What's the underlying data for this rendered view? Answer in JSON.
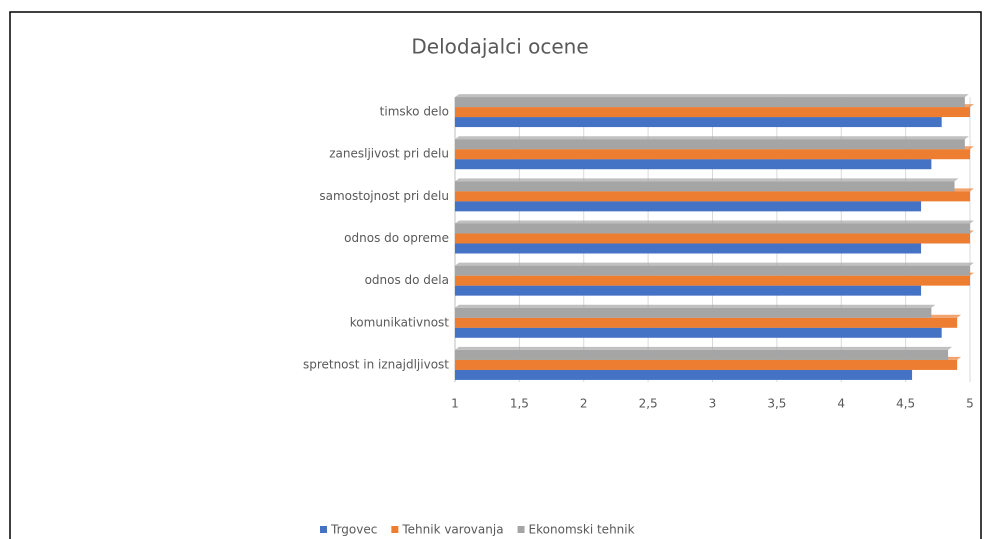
{
  "chart_data": {
    "type": "bar",
    "orientation": "horizontal",
    "title": "Delodajalci ocene",
    "categories": [
      "spretnost in iznajdljivost",
      "komunikativnost",
      "odnos do dela",
      "odnos do opreme",
      "samostojnost pri delu",
      "zanesljivost pri delu",
      "timsko delo"
    ],
    "series": [
      {
        "name": "Trgovec",
        "color": "#4472c4",
        "values": [
          4.55,
          4.78,
          4.62,
          4.62,
          4.62,
          4.7,
          4.78
        ]
      },
      {
        "name": "Tehnik varovanja",
        "color": "#ed7d31",
        "values": [
          4.9,
          4.9,
          5,
          5,
          5,
          5,
          5
        ]
      },
      {
        "name": "Ekonomski tehnik",
        "color": "#a5a5a5",
        "values": [
          4.83,
          4.7,
          5,
          5,
          4.88,
          4.96,
          4.96
        ]
      }
    ],
    "xlim": [
      1,
      5
    ],
    "xticks": [
      1,
      {
        "value": 1.5,
        "label": "1,5"
      },
      2,
      {
        "value": 2.5,
        "label": "2,5"
      },
      3,
      {
        "value": 3.5,
        "label": "3,5"
      },
      4,
      {
        "value": 4.5,
        "label": "4,5"
      },
      5
    ],
    "grid": true,
    "legend": "bottom"
  }
}
